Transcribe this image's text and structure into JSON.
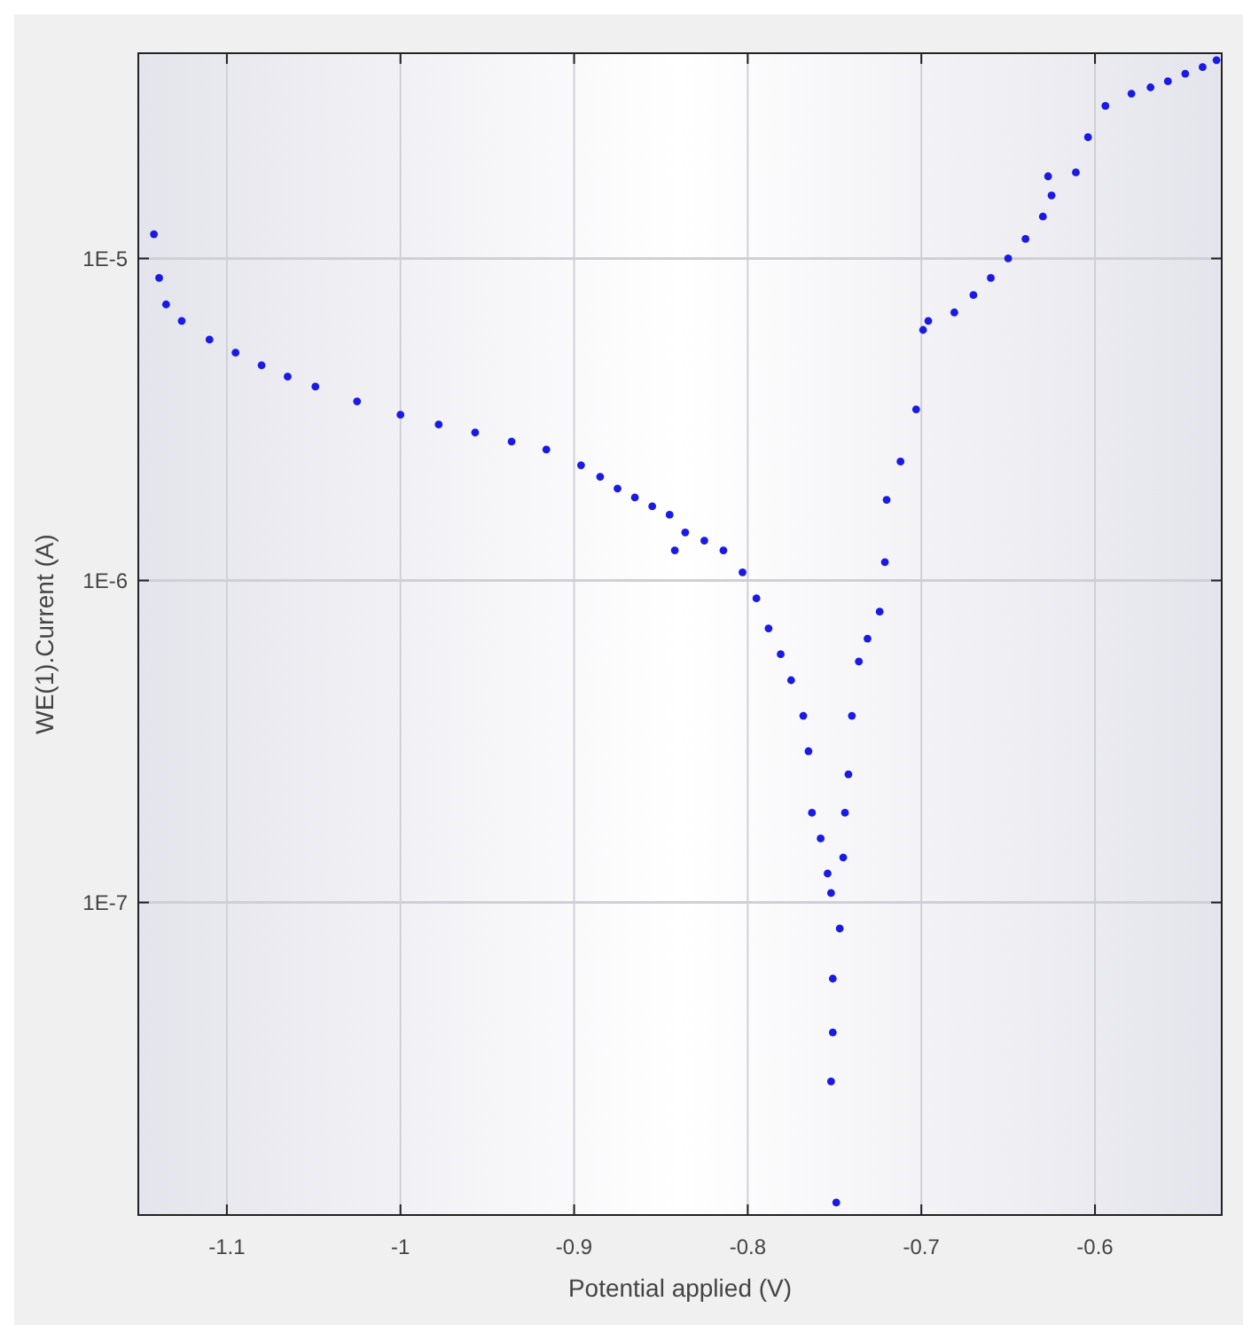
{
  "chart_data": {
    "type": "scatter",
    "xlabel": "Potential applied (V)",
    "ylabel": "WE(1).Current (A)",
    "x": [
      -1.142,
      -1.139,
      -1.135,
      -1.126,
      -1.11,
      -1.095,
      -1.08,
      -1.065,
      -1.049,
      -1.025,
      -1.0,
      -0.978,
      -0.957,
      -0.936,
      -0.916,
      -0.896,
      -0.885,
      -0.875,
      -0.865,
      -0.855,
      -0.845,
      -0.842,
      -0.836,
      -0.825,
      -0.814,
      -0.803,
      -0.795,
      -0.788,
      -0.781,
      -0.775,
      -0.768,
      -0.765,
      -0.763,
      -0.758,
      -0.754,
      -0.752,
      -0.751,
      -0.752,
      -0.749,
      -0.751,
      -0.747,
      -0.745,
      -0.744,
      -0.742,
      -0.74,
      -0.736,
      -0.731,
      -0.724,
      -0.721,
      -0.72,
      -0.712,
      -0.703,
      -0.699,
      -0.696,
      -0.681,
      -0.67,
      -0.66,
      -0.65,
      -0.64,
      -0.63,
      -0.627,
      -0.625,
      -0.611,
      -0.604,
      -0.594,
      -0.579,
      -0.568,
      -0.558,
      -0.548,
      -0.538,
      -0.53
    ],
    "values": [
      1.19e-05,
      8.7e-06,
      7.2e-06,
      6.4e-06,
      5.6e-06,
      5.1e-06,
      4.66e-06,
      4.3e-06,
      4e-06,
      3.6e-06,
      3.27e-06,
      3.05e-06,
      2.88e-06,
      2.7e-06,
      2.55e-06,
      2.28e-06,
      2.1e-06,
      1.93e-06,
      1.81e-06,
      1.7e-06,
      1.6e-06,
      1.24e-06,
      1.41e-06,
      1.33e-06,
      1.24e-06,
      1.06e-06,
      8.8e-07,
      7.1e-07,
      5.9e-07,
      4.9e-07,
      3.8e-07,
      2.95e-07,
      1.9e-07,
      1.58e-07,
      1.23e-07,
      1.07e-07,
      3.95e-08,
      2.78e-08,
      1.17e-08,
      5.8e-08,
      8.3e-08,
      1.38e-07,
      1.9e-07,
      2.5e-07,
      3.8e-07,
      5.6e-07,
      6.6e-07,
      8e-07,
      1.14e-06,
      1.78e-06,
      2.34e-06,
      3.4e-06,
      6e-06,
      6.4e-06,
      6.8e-06,
      7.7e-06,
      8.7e-06,
      1e-05,
      1.15e-05,
      1.35e-05,
      1.8e-05,
      1.57e-05,
      1.85e-05,
      2.38e-05,
      2.98e-05,
      3.25e-05,
      3.4e-05,
      3.55e-05,
      3.75e-05,
      3.93e-05,
      4.13e-05
    ],
    "color": "#1a1ae6",
    "marker": "circle",
    "log": true,
    "grid": true,
    "xlim": [
      -1.151,
      -0.527
    ],
    "xticks": [
      {
        "value": -1.1,
        "label": "-1.1"
      },
      {
        "value": -1,
        "label": "-1"
      },
      {
        "value": -0.9,
        "label": "-0.9"
      },
      {
        "value": -0.8,
        "label": "-0.8"
      },
      {
        "value": -0.7,
        "label": "-0.7"
      },
      {
        "value": -0.6,
        "label": "-0.6"
      }
    ],
    "ylim": [
      1.07e-08,
      4.34e-05
    ],
    "yticks": [
      {
        "value": 1e-07,
        "label": "1E-7"
      },
      {
        "value": 1e-06,
        "label": "1E-6"
      },
      {
        "value": 1e-05,
        "label": "1E-5"
      }
    ]
  }
}
